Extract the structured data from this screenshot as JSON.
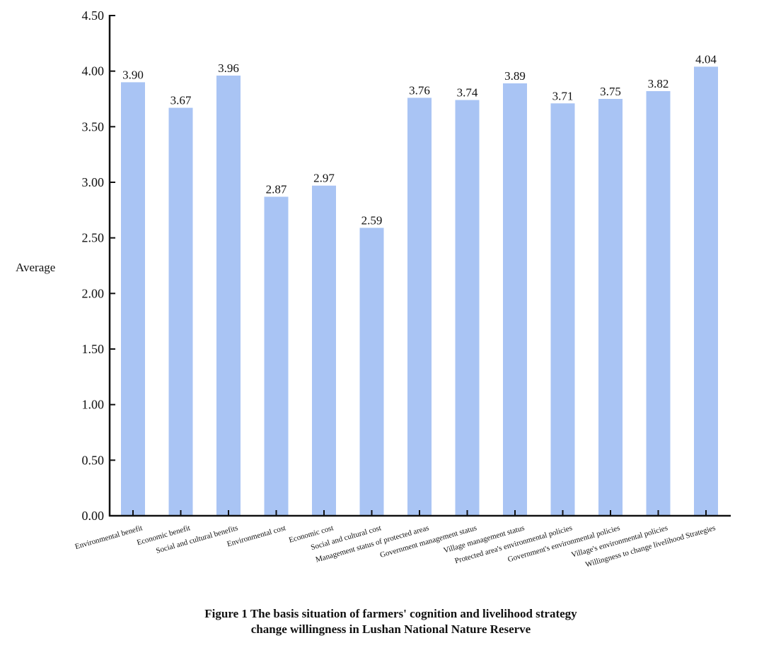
{
  "chart_data": {
    "type": "bar",
    "title": "Figure 1  The basis situation of farmers' cognition and livelihood strategy change willingness in Lushan National Nature Reserve",
    "title_lines": [
      "Figure 1  The basis situation of farmers' cognition and livelihood strategy",
      "change willingness in Lushan National Nature Reserve"
    ],
    "xlabel": "",
    "ylabel": "Average",
    "ylim": [
      0,
      4.5
    ],
    "yticks": [
      "0.00",
      "0.50",
      "1.00",
      "1.50",
      "2.00",
      "2.50",
      "3.00",
      "3.50",
      "4.00",
      "4.50"
    ],
    "grid": false,
    "bar_color": "#A9C4F4",
    "categories": [
      "Environmental benefit",
      "Economic benefit",
      "Social and cultural benefits",
      "Environmental cost",
      "Economic cost",
      "Social and cultural cost",
      "Management status of protected areas",
      "Government management status",
      "Village management status",
      "Protected area's environmental policies",
      "Government's environmental policies",
      "Village's environmental policies",
      "Willingness to change livelihood Strategies"
    ],
    "values": [
      3.9,
      3.67,
      3.96,
      2.87,
      2.97,
      2.59,
      3.76,
      3.74,
      3.89,
      3.71,
      3.75,
      3.82,
      4.04
    ],
    "data_labels": [
      "3.90",
      "3.67",
      "3.96",
      "2.87",
      "2.97",
      "2.59",
      "3.76",
      "3.74",
      "3.89",
      "3.71",
      "3.75",
      "3.82",
      "4.04"
    ]
  }
}
